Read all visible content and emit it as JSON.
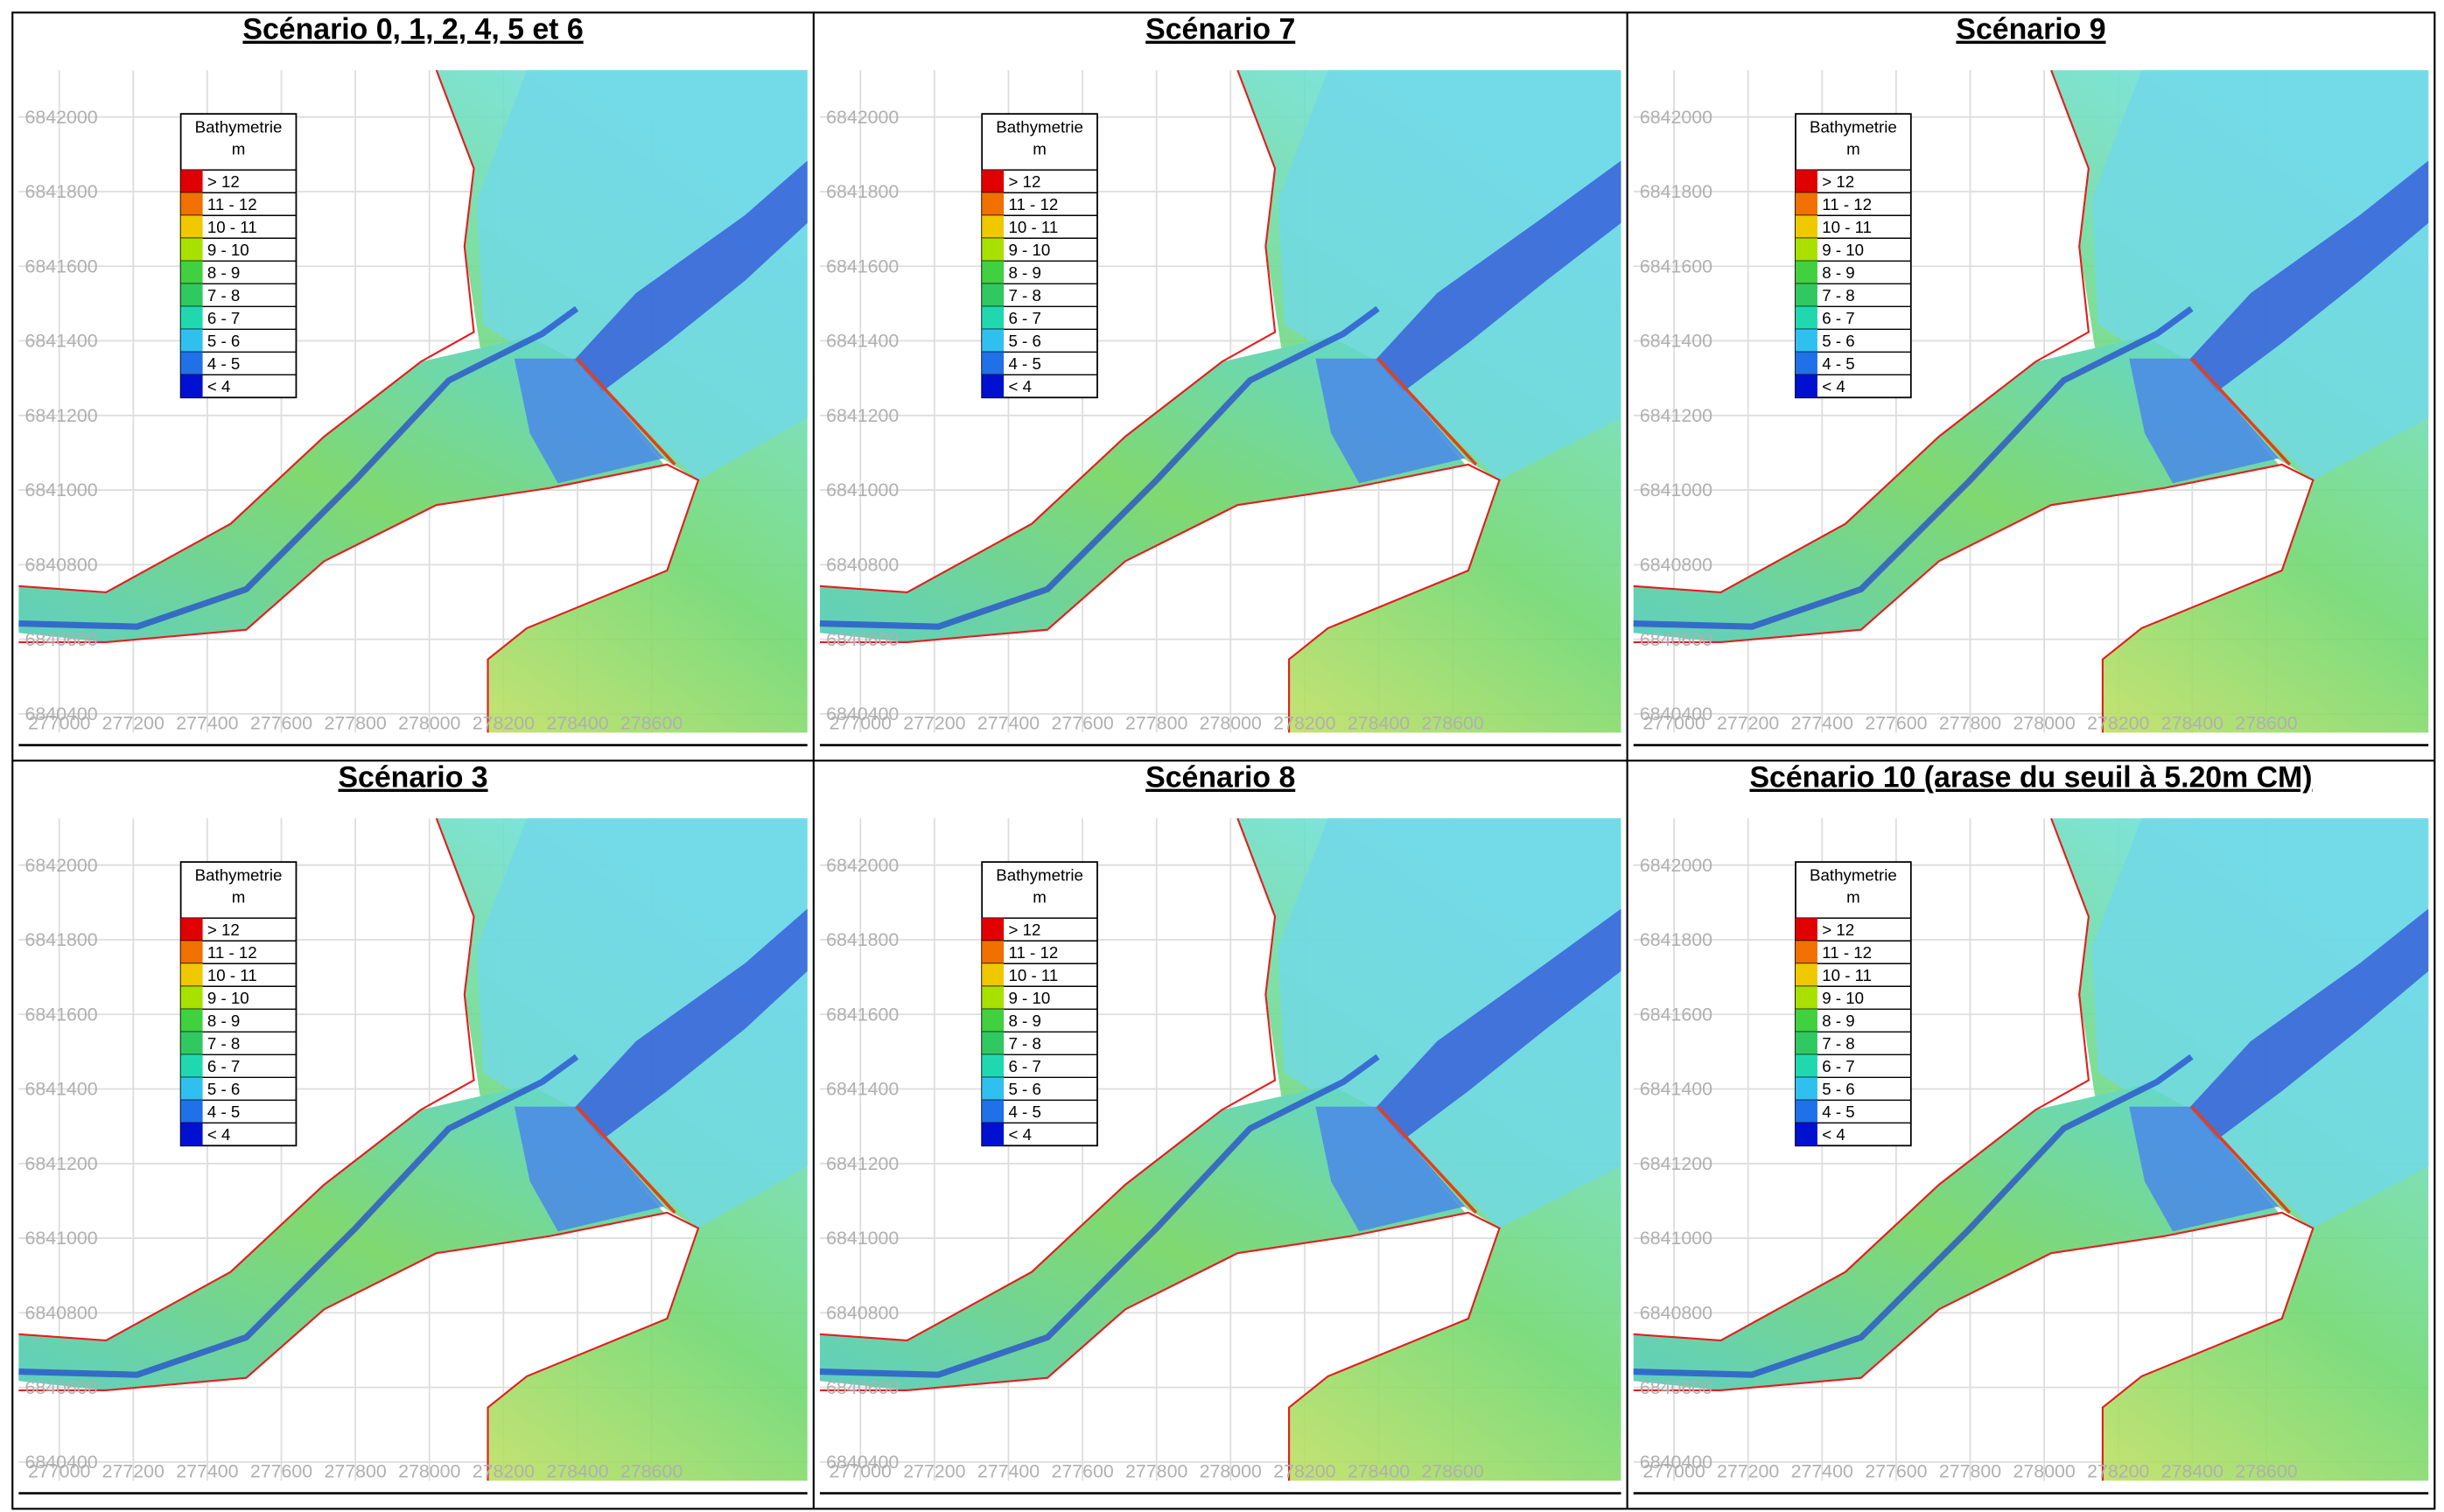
{
  "panels": [
    {
      "title": "Scénario 0, 1, 2, 4, 5 et 6"
    },
    {
      "title": "Scénario 7"
    },
    {
      "title": "Scénario 9"
    },
    {
      "title": "Scénario 3"
    },
    {
      "title": "Scénario 8"
    },
    {
      "title": "Scénario 10 (arase du seuil à 5.20m CM)"
    }
  ],
  "legend": {
    "title": "Bathymetrie",
    "unit": "m",
    "classes": [
      {
        "label": "> 12",
        "color": "#e00000"
      },
      {
        "label": "11 - 12",
        "color": "#f07000"
      },
      {
        "label": "10 - 11",
        "color": "#f0c800"
      },
      {
        "label": "9 - 10",
        "color": "#a8e000"
      },
      {
        "label": "8 - 9",
        "color": "#40d040"
      },
      {
        "label": "7 - 8",
        "color": "#30c860"
      },
      {
        "label": "6 - 7",
        "color": "#20d8b0"
      },
      {
        "label": "5 - 6",
        "color": "#30c0f0"
      },
      {
        "label": "4 - 5",
        "color": "#2070e8"
      },
      {
        "label": "< 4",
        "color": "#0010d0"
      }
    ]
  },
  "axes": {
    "yticks": [
      6842000,
      6841800,
      6841600,
      6841400,
      6841200,
      6841000,
      6840800,
      6840600,
      6840400
    ],
    "xticks": [
      277000,
      277200,
      277400,
      277600,
      277800,
      278000,
      278200,
      278400,
      278600
    ]
  }
}
